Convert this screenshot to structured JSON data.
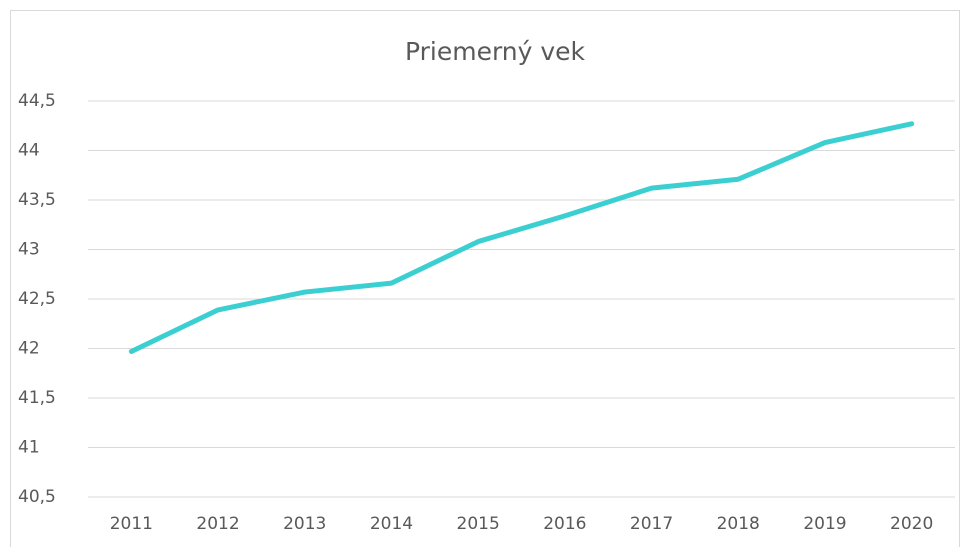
{
  "chart_data": {
    "type": "line",
    "title": "Priemerný vek",
    "categories": [
      "2011",
      "2012",
      "2013",
      "2014",
      "2015",
      "2016",
      "2017",
      "2018",
      "2019",
      "2020"
    ],
    "series": [
      {
        "name": "Priemerný vek",
        "color": "#3ccfd2",
        "values": [
          41.97,
          42.39,
          42.57,
          42.66,
          43.08,
          43.34,
          43.62,
          43.71,
          44.08,
          44.27
        ]
      }
    ],
    "ylim": [
      40.5,
      44.5
    ],
    "yticks": [
      {
        "value": 40.5,
        "label": "40,5"
      },
      41,
      {
        "value": 41.5,
        "label": "41,5"
      },
      42,
      {
        "value": 42.5,
        "label": "42,5"
      },
      43,
      {
        "value": 43.5,
        "label": "43,5"
      },
      44,
      {
        "value": 44.5,
        "label": "44,5"
      }
    ],
    "grid": true
  }
}
